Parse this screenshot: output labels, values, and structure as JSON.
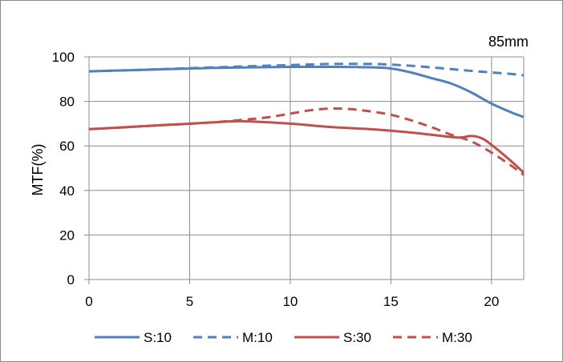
{
  "chart_data": {
    "type": "line",
    "annotation": "85mm",
    "xlabel": "",
    "ylabel": "MTF(%)",
    "xlim": [
      0,
      21.6
    ],
    "ylim": [
      0,
      100
    ],
    "x_ticks": [
      0,
      5,
      10,
      15,
      20
    ],
    "y_ticks": [
      0,
      20,
      40,
      60,
      80,
      100
    ],
    "grid": true,
    "legend_position": "bottom",
    "series": [
      {
        "name": "S:10",
        "color": "#4F81BD",
        "dash": "solid",
        "x": [
          0,
          2,
          4,
          6,
          8,
          10,
          12,
          14,
          15,
          16,
          17,
          18,
          19,
          20,
          21,
          21.6
        ],
        "y": [
          93.5,
          94,
          94.5,
          95,
          95.3,
          95.5,
          95.5,
          95.3,
          94.8,
          93,
          90.5,
          88,
          84,
          79,
          75,
          73
        ]
      },
      {
        "name": "M:10",
        "color": "#4F81BD",
        "dash": "dashed",
        "x": [
          0,
          2,
          4,
          6,
          8,
          10,
          12,
          14,
          15,
          16,
          17,
          18,
          19,
          20,
          21,
          21.6
        ],
        "y": [
          93.5,
          94,
          94.6,
          95.2,
          95.8,
          96.3,
          96.8,
          96.8,
          96.5,
          96,
          95.3,
          94.5,
          93.7,
          93,
          92.3,
          91.7
        ]
      },
      {
        "name": "S:30",
        "color": "#C0504D",
        "dash": "solid",
        "x": [
          0,
          2,
          4,
          6,
          7,
          8,
          10,
          12,
          14,
          16,
          18,
          18.5,
          19,
          19.5,
          20,
          21,
          21.6
        ],
        "y": [
          67.5,
          68.5,
          69.5,
          70.5,
          71,
          71,
          70,
          68.5,
          67.5,
          66,
          64,
          63.8,
          64.5,
          63.5,
          60.5,
          53,
          48
        ]
      },
      {
        "name": "M:30",
        "color": "#C0504D",
        "dash": "dashed",
        "x": [
          0,
          2,
          4,
          6,
          8,
          9,
          10,
          11,
          12,
          13,
          14,
          15,
          16,
          17,
          18,
          19,
          20,
          21,
          21.6
        ],
        "y": [
          67.5,
          68.5,
          69.5,
          70.5,
          72,
          73,
          74.5,
          76,
          76.8,
          76.5,
          75.5,
          74,
          71.5,
          68.5,
          65,
          62,
          57,
          51,
          47
        ]
      }
    ]
  }
}
